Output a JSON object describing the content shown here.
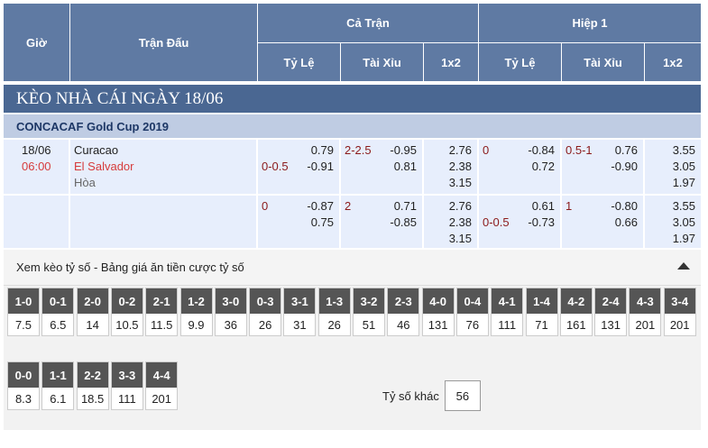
{
  "header": {
    "time": "Giờ",
    "match": "Trận Đấu",
    "full_time": "Cả Trận",
    "first_half": "Hiệp 1",
    "handicap": "Tỷ Lệ",
    "over_under": "Tài Xỉu",
    "one_x_two": "1x2"
  },
  "page_title": "KÈO NHÀ CÁI NGÀY 18/06",
  "league": "CONCACAF Gold Cup 2019",
  "match": {
    "date": "18/06",
    "time": "06:00",
    "home": "Curacao",
    "away": "El Salvador",
    "draw": "Hòa"
  },
  "rows": [
    {
      "ft_hdp_line": "0-0.5",
      "ft_hdp_home": "0.79",
      "ft_hdp_away": "-0.91",
      "ft_ou_line": "2-2.5",
      "ft_ou_over": "-0.95",
      "ft_ou_under": "0.81",
      "ft_1": "2.76",
      "ft_2": "2.38",
      "ft_x": "3.15",
      "h1_hdp_line": "0",
      "h1_hdp_home": "-0.84",
      "h1_hdp_away": "0.72",
      "h1_ou_line": "0.5-1",
      "h1_ou_over": "0.76",
      "h1_ou_under": "-0.90",
      "h1_1": "3.55",
      "h1_2": "3.05",
      "h1_x": "1.97"
    },
    {
      "ft_hdp_line": "0",
      "ft_hdp_home": "-0.87",
      "ft_hdp_away": "0.75",
      "ft_ou_line": "2",
      "ft_ou_over": "0.71",
      "ft_ou_under": "-0.85",
      "ft_1": "2.76",
      "ft_2": "2.38",
      "ft_x": "3.15",
      "h1_hdp_line": "0-0.5",
      "h1_hdp_home": "0.61",
      "h1_hdp_away": "-0.73",
      "h1_ou_line": "1",
      "h1_ou_over": "-0.80",
      "h1_ou_under": "0.66",
      "h1_1": "3.55",
      "h1_2": "3.05",
      "h1_x": "1.97"
    }
  ],
  "correct_score": {
    "title": "Xem kèo tỷ số - Bảng giá ăn tiền cược tỷ số",
    "row1": [
      {
        "score": "1-0",
        "odd": "7.5"
      },
      {
        "score": "0-1",
        "odd": "6.5"
      },
      {
        "score": "2-0",
        "odd": "14"
      },
      {
        "score": "0-2",
        "odd": "10.5"
      },
      {
        "score": "2-1",
        "odd": "11.5"
      },
      {
        "score": "1-2",
        "odd": "9.9"
      },
      {
        "score": "3-0",
        "odd": "36"
      },
      {
        "score": "0-3",
        "odd": "26"
      },
      {
        "score": "3-1",
        "odd": "31"
      },
      {
        "score": "1-3",
        "odd": "26"
      },
      {
        "score": "3-2",
        "odd": "51"
      },
      {
        "score": "2-3",
        "odd": "46"
      },
      {
        "score": "4-0",
        "odd": "131"
      },
      {
        "score": "0-4",
        "odd": "76"
      },
      {
        "score": "4-1",
        "odd": "111"
      },
      {
        "score": "1-4",
        "odd": "71"
      },
      {
        "score": "4-2",
        "odd": "161"
      },
      {
        "score": "2-4",
        "odd": "131"
      },
      {
        "score": "4-3",
        "odd": "201"
      },
      {
        "score": "3-4",
        "odd": "201"
      }
    ],
    "row2": [
      {
        "score": "0-0",
        "odd": "8.3"
      },
      {
        "score": "1-1",
        "odd": "6.1"
      },
      {
        "score": "2-2",
        "odd": "18.5"
      },
      {
        "score": "3-3",
        "odd": "111"
      },
      {
        "score": "4-4",
        "odd": "201"
      }
    ],
    "other_label": "Tỷ số khác",
    "other_value": "56"
  }
}
